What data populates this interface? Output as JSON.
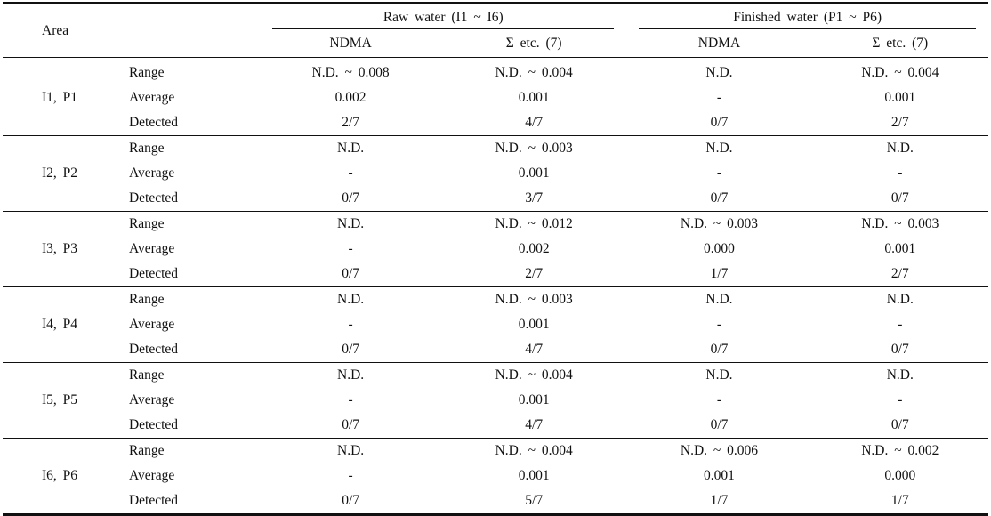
{
  "table": {
    "area_label": "Area",
    "groups": [
      {
        "label": "Raw water (I1 ~ I6)",
        "subcols": [
          "NDMA",
          "Σ etc. (7)"
        ]
      },
      {
        "label": "Finished water (P1 ~ P6)",
        "subcols": [
          "NDMA",
          "Σ etc. (7)"
        ]
      }
    ],
    "stat_labels": [
      "Range",
      "Average",
      "Detected"
    ],
    "blocks": [
      {
        "area": "I1, P1",
        "range": [
          "N.D. ~ 0.008",
          "N.D. ~ 0.004",
          "N.D.",
          "N.D. ~ 0.004"
        ],
        "average": [
          "0.002",
          "0.001",
          "-",
          "0.001"
        ],
        "detected": [
          "2/7",
          "4/7",
          "0/7",
          "2/7"
        ]
      },
      {
        "area": "I2, P2",
        "range": [
          "N.D.",
          "N.D. ~ 0.003",
          "N.D.",
          "N.D."
        ],
        "average": [
          "-",
          "0.001",
          "-",
          "-"
        ],
        "detected": [
          "0/7",
          "3/7",
          "0/7",
          "0/7"
        ]
      },
      {
        "area": "I3, P3",
        "range": [
          "N.D.",
          "N.D. ~ 0.012",
          "N.D. ~ 0.003",
          "N.D. ~ 0.003"
        ],
        "average": [
          "-",
          "0.002",
          "0.000",
          "0.001"
        ],
        "detected": [
          "0/7",
          "2/7",
          "1/7",
          "2/7"
        ]
      },
      {
        "area": "I4, P4",
        "range": [
          "N.D.",
          "N.D. ~ 0.003",
          "N.D.",
          "N.D."
        ],
        "average": [
          "-",
          "0.001",
          "-",
          "-"
        ],
        "detected": [
          "0/7",
          "4/7",
          "0/7",
          "0/7"
        ]
      },
      {
        "area": "I5, P5",
        "range": [
          "N.D.",
          "N.D. ~ 0.004",
          "N.D.",
          "N.D."
        ],
        "average": [
          "-",
          "0.001",
          "-",
          "-"
        ],
        "detected": [
          "0/7",
          "4/7",
          "0/7",
          "0/7"
        ]
      },
      {
        "area": "I6, P6",
        "range": [
          "N.D.",
          "N.D. ~ 0.004",
          "N.D. ~ 0.006",
          "N.D. ~ 0.002"
        ],
        "average": [
          "-",
          "0.001",
          "0.001",
          "0.000"
        ],
        "detected": [
          "0/7",
          "5/7",
          "1/7",
          "1/7"
        ]
      }
    ]
  }
}
